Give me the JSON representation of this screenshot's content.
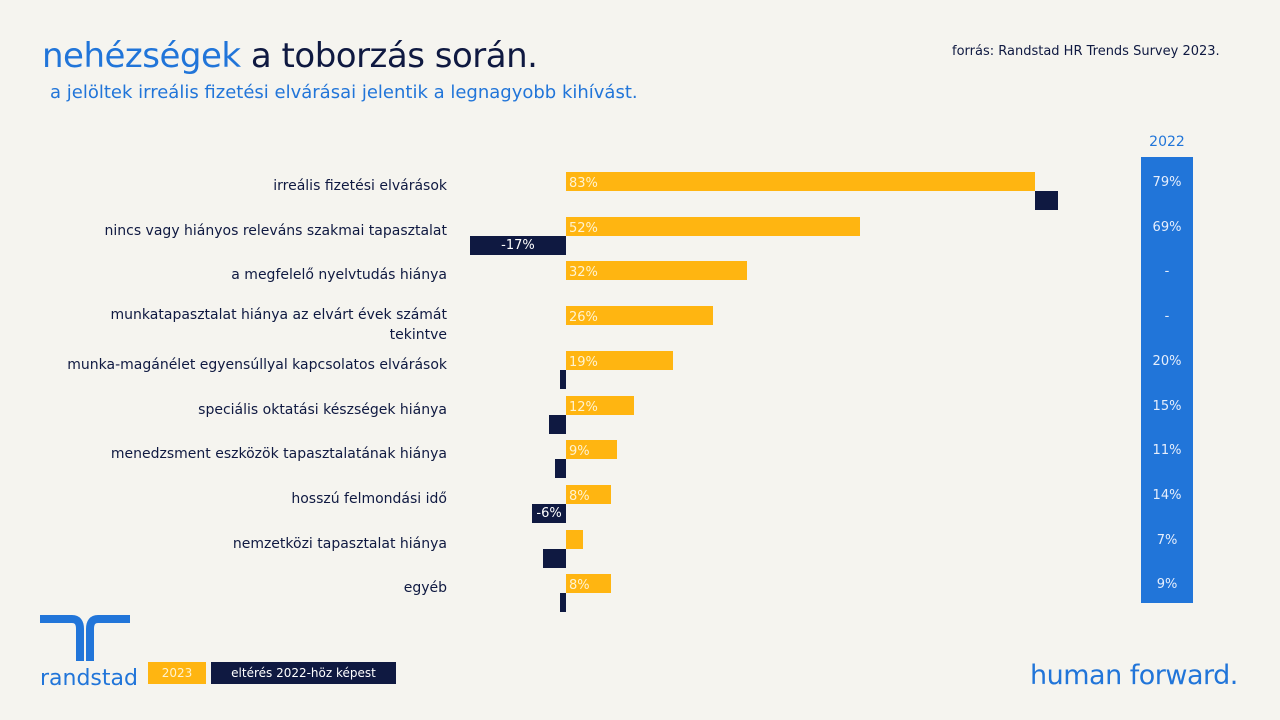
{
  "title": {
    "highlight": "nehézségek",
    "rest": " a toborzás során."
  },
  "subtitle": "a jelöltek irreális fizetési elvárásai jelentik a legnagyobb kihívást.",
  "source": "forrás: Randstad HR Trends Survey 2023.",
  "brand": "randstad",
  "tagline": "human forward.",
  "chart_data": {
    "type": "bar",
    "title": "nehézségek a toborzás során.",
    "categories": [
      "irreális fizetési elvárások",
      "nincs vagy hiányos releváns szakmai tapasztalat",
      "a megfelelő nyelvtudás hiánya",
      "munkatapasztalat hiánya az elvárt évek számát tekintve",
      "munka-magánélet egyensúllyal kapcsolatos elvárások",
      "speciális oktatási készségek hiánya",
      "menedzsment eszközök tapasztalatának hiánya",
      "hosszú felmondási idő",
      "nemzetközi tapasztalat hiánya",
      "egyéb"
    ],
    "series": [
      {
        "name": "2023",
        "values": [
          83,
          52,
          32,
          26,
          19,
          12,
          9,
          8,
          3,
          8
        ],
        "labels": [
          "83%",
          "52%",
          "32%",
          "26%",
          "19%",
          "12%",
          "9%",
          "8%",
          "",
          "8%"
        ]
      },
      {
        "name": "eltérés 2022-höz képest",
        "values": [
          4,
          -17,
          null,
          null,
          -1,
          -3,
          -2,
          -6,
          -4,
          -1
        ],
        "labels": [
          "",
          "-17%",
          "",
          "",
          "",
          "",
          "",
          "-6%",
          "",
          ""
        ]
      }
    ],
    "col_2022": {
      "header": "2022",
      "values": [
        "79%",
        "69%",
        "-",
        "-",
        "20%",
        "15%",
        "11%",
        "14%",
        "7%",
        "9%"
      ]
    },
    "legend": [
      "2023",
      "eltérés 2022-höz képest"
    ],
    "legend_position": "bottom-left"
  }
}
